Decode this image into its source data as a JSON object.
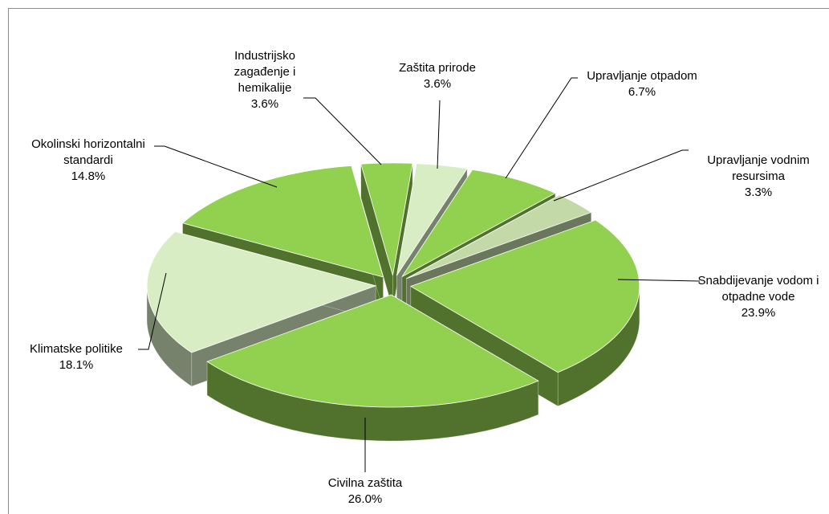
{
  "chart_data": {
    "type": "pie",
    "three_d": true,
    "exploded": true,
    "categories": [
      "Industrijsko zagađenje i hemikalije",
      "Zaštita prirode",
      "Upravljanje otpadom",
      "Upravljanje vodnim resursima",
      "Snabdijevanje vodom i otpadne vode",
      "Civilna zaštita",
      "Klimatske politike",
      "Okolinski horizontalni standardi"
    ],
    "values": [
      3.6,
      3.6,
      6.7,
      3.3,
      23.9,
      26.0,
      18.1,
      14.8
    ],
    "value_labels": [
      "3.6%",
      "3.6%",
      "6.7%",
      "3.3%",
      "23.9%",
      "26.0%",
      "18.1%",
      "14.8%"
    ],
    "colors": [
      "#92d050",
      "#d8edc4",
      "#92d050",
      "#c4d9a8",
      "#92d050",
      "#92d050",
      "#d8edc4",
      "#92d050"
    ]
  }
}
